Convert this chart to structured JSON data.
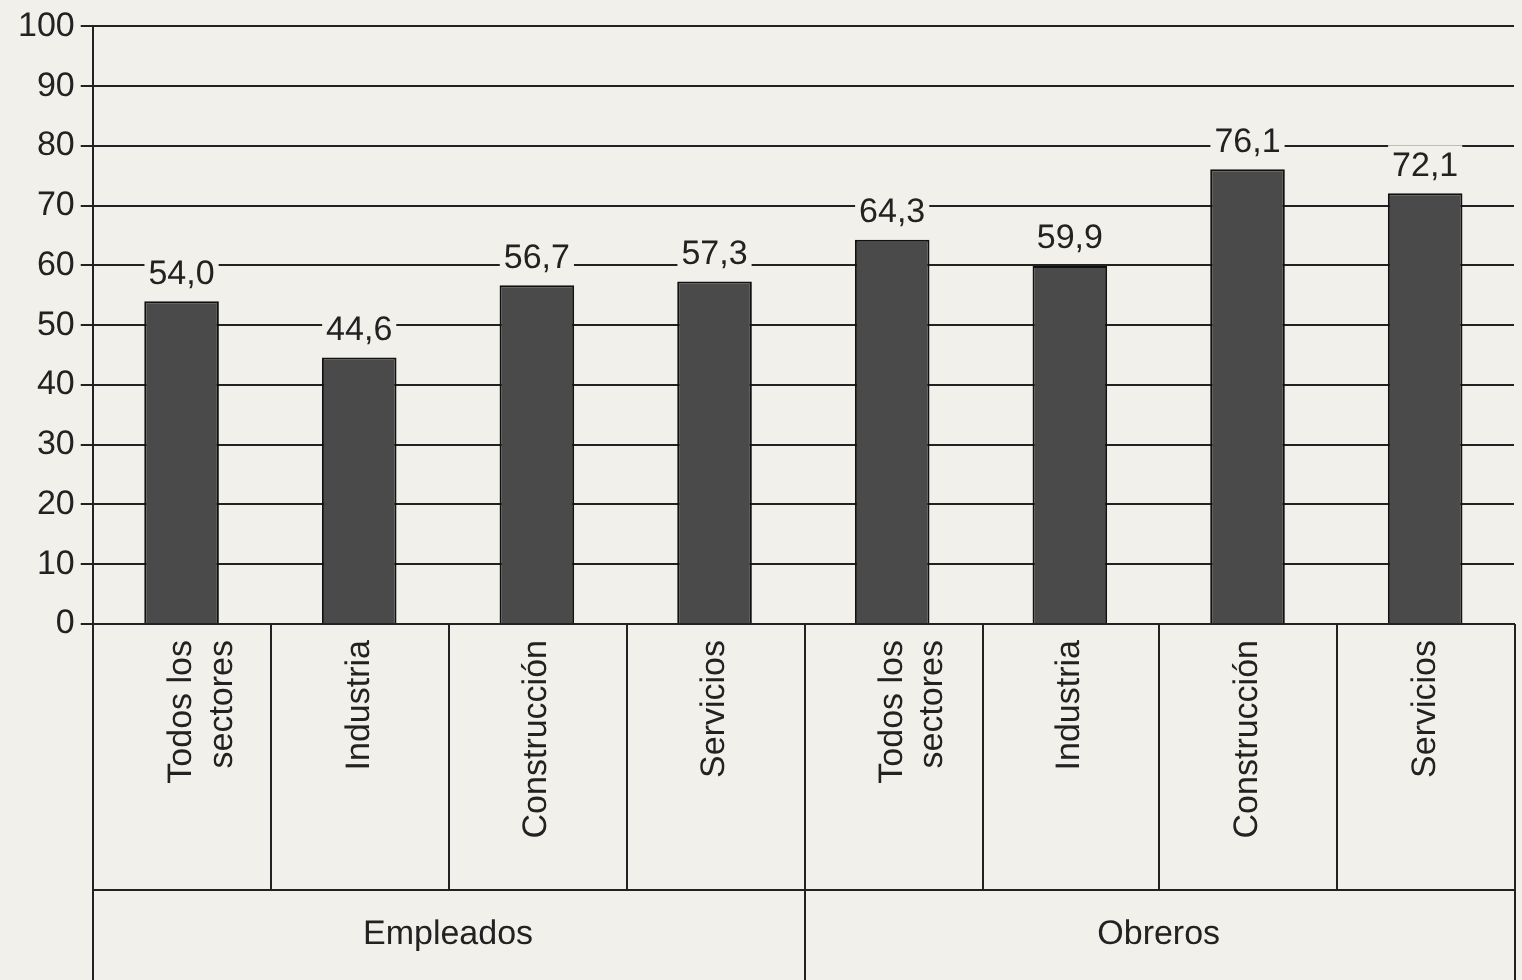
{
  "chart_data": {
    "type": "bar",
    "categories": [
      "Todos los sectores",
      "Industria",
      "Construcción",
      "Servicios",
      "Todos los sectores",
      "Industria",
      "Construcción",
      "Servicios"
    ],
    "values": [
      54.0,
      44.6,
      56.7,
      57.3,
      64.3,
      59.9,
      76.1,
      72.1
    ],
    "value_labels": [
      "54,0",
      "44,6",
      "56,7",
      "57,3",
      "64,3",
      "59,9",
      "76,1",
      "72,1"
    ],
    "color": "#4a4a4a",
    "ylim": [
      0,
      100
    ],
    "yticks": [
      0,
      10,
      20,
      30,
      40,
      50,
      60,
      70,
      80,
      90,
      100
    ],
    "grid": "y",
    "legend": false,
    "annotations": [
      "Empleados",
      "Obreros"
    ]
  }
}
